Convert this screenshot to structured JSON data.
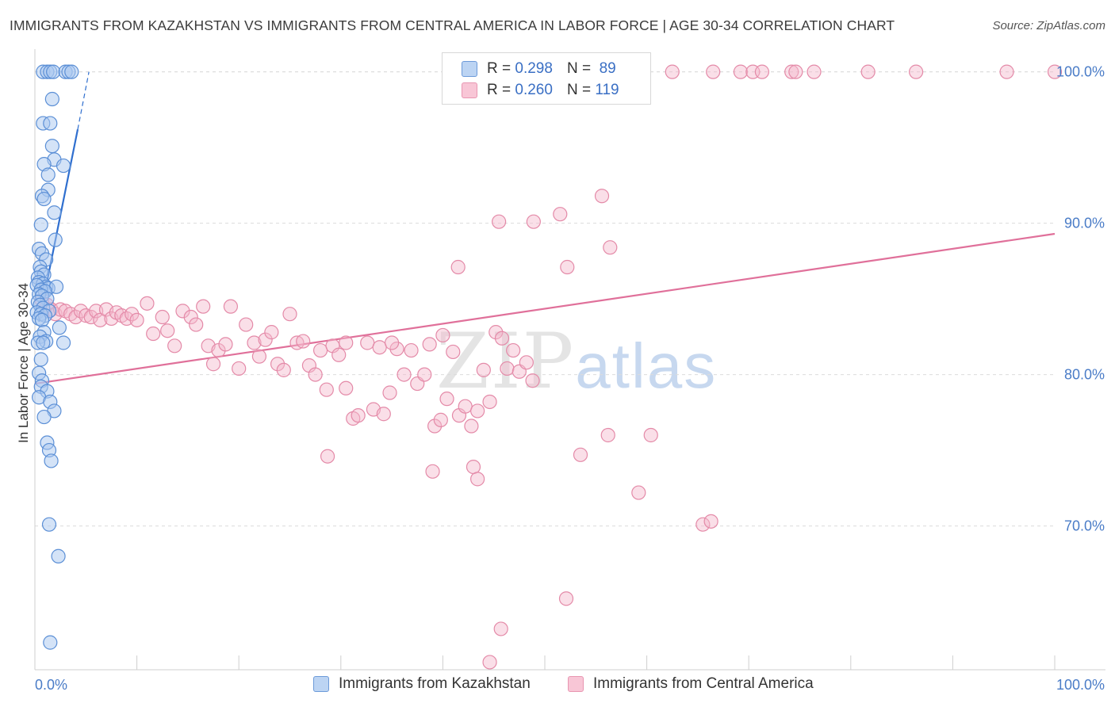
{
  "title": "IMMIGRANTS FROM KAZAKHSTAN VS IMMIGRANTS FROM CENTRAL AMERICA IN LABOR FORCE | AGE 30-34 CORRELATION CHART",
  "source": "Source: ZipAtlas.com",
  "watermark": {
    "zip": "ZIP",
    "atlas": "atlas"
  },
  "legend": {
    "r_label": "R =",
    "n_label": "N =",
    "rows": [
      {
        "r": "0.298",
        "n": "89"
      },
      {
        "r": "0.260",
        "n": "119"
      }
    ]
  },
  "colors": {
    "blue_fill": "#a9c8f0",
    "blue_stroke": "#5b8fd6",
    "blue_line": "#2f6fcf",
    "pink_fill": "#f5b8cc",
    "pink_stroke": "#e48aa8",
    "pink_line": "#e0709a",
    "tick_text": "#4a7cc7",
    "grid": "#dcdcdc"
  },
  "chart_data": {
    "type": "scatter",
    "title": "IMMIGRANTS FROM KAZAKHSTAN VS IMMIGRANTS FROM CENTRAL AMERICA IN LABOR FORCE | AGE 30-34 CORRELATION CHART",
    "xlabel": "",
    "ylabel": "In Labor Force | Age 30-34",
    "xlim": [
      0,
      100
    ],
    "ylim": [
      60.5,
      101.5
    ],
    "x_tick_labels": [
      "0.0%",
      "100.0%"
    ],
    "y_ticks": [
      70,
      80,
      90,
      100
    ],
    "y_tick_labels": [
      "70.0%",
      "80.0%",
      "90.0%",
      "100.0%"
    ],
    "grid": true,
    "legend_position": "bottom",
    "series": [
      {
        "name": "Immigrants from Kazakhstan",
        "r": 0.298,
        "n": 89,
        "trend": {
          "x": [
            0.4,
            4.2
          ],
          "y": [
            83.5,
            96.2
          ],
          "dashed_to": [
            5.3,
            100.0
          ]
        },
        "points": [
          [
            0.8,
            100
          ],
          [
            1.2,
            100
          ],
          [
            1.5,
            100
          ],
          [
            1.8,
            100
          ],
          [
            3.0,
            100
          ],
          [
            3.3,
            100
          ],
          [
            3.6,
            100
          ],
          [
            1.7,
            98.2
          ],
          [
            0.8,
            96.6
          ],
          [
            1.5,
            96.6
          ],
          [
            1.7,
            95.1
          ],
          [
            1.9,
            94.2
          ],
          [
            2.8,
            93.8
          ],
          [
            0.9,
            93.9
          ],
          [
            1.3,
            93.2
          ],
          [
            1.3,
            92.2
          ],
          [
            0.7,
            91.8
          ],
          [
            0.9,
            91.6
          ],
          [
            1.9,
            90.7
          ],
          [
            0.6,
            89.9
          ],
          [
            2.0,
            88.9
          ],
          [
            0.4,
            88.3
          ],
          [
            0.7,
            88.0
          ],
          [
            1.1,
            87.6
          ],
          [
            0.5,
            87.1
          ],
          [
            0.6,
            86.8
          ],
          [
            0.9,
            86.6
          ],
          [
            0.3,
            86.4
          ],
          [
            0.4,
            86.1
          ],
          [
            0.8,
            86.0
          ],
          [
            1.1,
            85.8
          ],
          [
            1.3,
            85.7
          ],
          [
            2.1,
            85.8
          ],
          [
            0.2,
            85.9
          ],
          [
            0.6,
            85.6
          ],
          [
            1.0,
            85.5
          ],
          [
            0.4,
            85.3
          ],
          [
            0.7,
            85.2
          ],
          [
            1.2,
            85.0
          ],
          [
            0.3,
            84.8
          ],
          [
            0.5,
            84.6
          ],
          [
            0.8,
            84.4
          ],
          [
            1.4,
            84.2
          ],
          [
            0.2,
            84.1
          ],
          [
            0.6,
            84.0
          ],
          [
            1.0,
            83.9
          ],
          [
            0.4,
            83.7
          ],
          [
            0.7,
            83.6
          ],
          [
            2.4,
            83.1
          ],
          [
            0.9,
            82.8
          ],
          [
            0.5,
            82.5
          ],
          [
            1.1,
            82.2
          ],
          [
            0.3,
            82.1
          ],
          [
            0.8,
            82.1
          ],
          [
            2.8,
            82.1
          ],
          [
            0.6,
            81.0
          ],
          [
            0.4,
            80.1
          ],
          [
            0.7,
            79.6
          ],
          [
            0.6,
            79.2
          ],
          [
            1.2,
            78.9
          ],
          [
            0.4,
            78.5
          ],
          [
            1.5,
            78.2
          ],
          [
            1.9,
            77.6
          ],
          [
            0.9,
            77.2
          ],
          [
            1.2,
            75.5
          ],
          [
            1.4,
            75.0
          ],
          [
            1.6,
            74.3
          ],
          [
            1.4,
            70.1
          ],
          [
            2.3,
            68.0
          ],
          [
            1.5,
            62.3
          ]
        ]
      },
      {
        "name": "Immigrants from Central America",
        "r": 0.26,
        "n": 119,
        "trend": {
          "x": [
            0,
            100
          ],
          "y": [
            79.4,
            89.3
          ]
        },
        "points": [
          [
            47.5,
            100
          ],
          [
            62.5,
            100
          ],
          [
            66.5,
            100
          ],
          [
            69.2,
            100
          ],
          [
            70.4,
            100
          ],
          [
            71.3,
            100
          ],
          [
            74.2,
            100
          ],
          [
            74.6,
            100
          ],
          [
            76.4,
            100
          ],
          [
            81.7,
            100
          ],
          [
            86.4,
            100
          ],
          [
            95.3,
            100
          ],
          [
            100,
            100
          ],
          [
            55.6,
            91.8
          ],
          [
            45.5,
            90.1
          ],
          [
            48.9,
            90.1
          ],
          [
            51.5,
            90.6
          ],
          [
            56.4,
            88.4
          ],
          [
            41.5,
            87.1
          ],
          [
            52.2,
            87.1
          ],
          [
            0.7,
            84.9
          ],
          [
            1.2,
            84.6
          ],
          [
            1.6,
            84.3
          ],
          [
            2.0,
            84.0
          ],
          [
            2.5,
            84.3
          ],
          [
            3.0,
            84.2
          ],
          [
            3.5,
            84.0
          ],
          [
            4.0,
            83.8
          ],
          [
            4.5,
            84.2
          ],
          [
            5.0,
            83.9
          ],
          [
            5.5,
            83.8
          ],
          [
            6.0,
            84.2
          ],
          [
            6.4,
            83.6
          ],
          [
            7.0,
            84.3
          ],
          [
            7.5,
            83.7
          ],
          [
            8.0,
            84.1
          ],
          [
            8.5,
            83.9
          ],
          [
            9.0,
            83.7
          ],
          [
            9.5,
            84.0
          ],
          [
            10.0,
            83.6
          ],
          [
            11.0,
            84.7
          ],
          [
            11.6,
            82.7
          ],
          [
            12.5,
            83.8
          ],
          [
            13.0,
            82.9
          ],
          [
            13.7,
            81.9
          ],
          [
            14.5,
            84.2
          ],
          [
            15.3,
            83.8
          ],
          [
            15.8,
            83.3
          ],
          [
            16.5,
            84.5
          ],
          [
            17.0,
            81.9
          ],
          [
            17.5,
            80.7
          ],
          [
            18.0,
            81.6
          ],
          [
            18.7,
            82.0
          ],
          [
            19.2,
            84.5
          ],
          [
            20.0,
            80.4
          ],
          [
            20.7,
            83.3
          ],
          [
            21.5,
            82.1
          ],
          [
            22.0,
            81.2
          ],
          [
            22.6,
            82.3
          ],
          [
            23.2,
            82.8
          ],
          [
            23.8,
            80.7
          ],
          [
            24.4,
            80.3
          ],
          [
            25.0,
            84.0
          ],
          [
            25.7,
            82.1
          ],
          [
            26.3,
            82.2
          ],
          [
            26.9,
            80.6
          ],
          [
            27.5,
            80.0
          ],
          [
            28.0,
            81.6
          ],
          [
            28.6,
            79.0
          ],
          [
            29.2,
            81.9
          ],
          [
            29.8,
            81.3
          ],
          [
            30.5,
            79.1
          ],
          [
            31.2,
            77.1
          ],
          [
            31.7,
            77.3
          ],
          [
            32.6,
            82.1
          ],
          [
            33.2,
            77.7
          ],
          [
            33.8,
            81.8
          ],
          [
            34.2,
            77.4
          ],
          [
            34.8,
            78.8
          ],
          [
            35.5,
            81.7
          ],
          [
            36.2,
            80.0
          ],
          [
            36.9,
            81.6
          ],
          [
            37.5,
            79.4
          ],
          [
            38.2,
            80.0
          ],
          [
            38.7,
            82.0
          ],
          [
            39.2,
            76.6
          ],
          [
            39.8,
            77.0
          ],
          [
            40.4,
            78.4
          ],
          [
            41.0,
            81.5
          ],
          [
            41.6,
            77.3
          ],
          [
            42.2,
            77.9
          ],
          [
            42.8,
            76.6
          ],
          [
            43.4,
            77.6
          ],
          [
            44.0,
            80.3
          ],
          [
            44.6,
            78.2
          ],
          [
            45.2,
            82.8
          ],
          [
            45.8,
            82.4
          ],
          [
            46.3,
            80.4
          ],
          [
            46.9,
            81.6
          ],
          [
            47.5,
            80.2
          ],
          [
            48.2,
            80.8
          ],
          [
            48.8,
            79.6
          ],
          [
            28.7,
            74.6
          ],
          [
            39.0,
            73.6
          ],
          [
            43.0,
            73.9
          ],
          [
            43.4,
            73.1
          ],
          [
            53.5,
            74.7
          ],
          [
            56.2,
            76.0
          ],
          [
            59.2,
            72.2
          ],
          [
            60.4,
            76.0
          ],
          [
            65.5,
            70.1
          ],
          [
            66.3,
            70.3
          ],
          [
            52.1,
            65.2
          ],
          [
            45.7,
            63.2
          ],
          [
            44.6,
            61.0
          ],
          [
            30.5,
            82.1
          ],
          [
            35.0,
            82.1
          ],
          [
            40.0,
            82.6
          ]
        ]
      }
    ]
  },
  "bottom_legend": [
    {
      "label": "Immigrants from Kazakhstan"
    },
    {
      "label": "Immigrants from Central America"
    }
  ]
}
